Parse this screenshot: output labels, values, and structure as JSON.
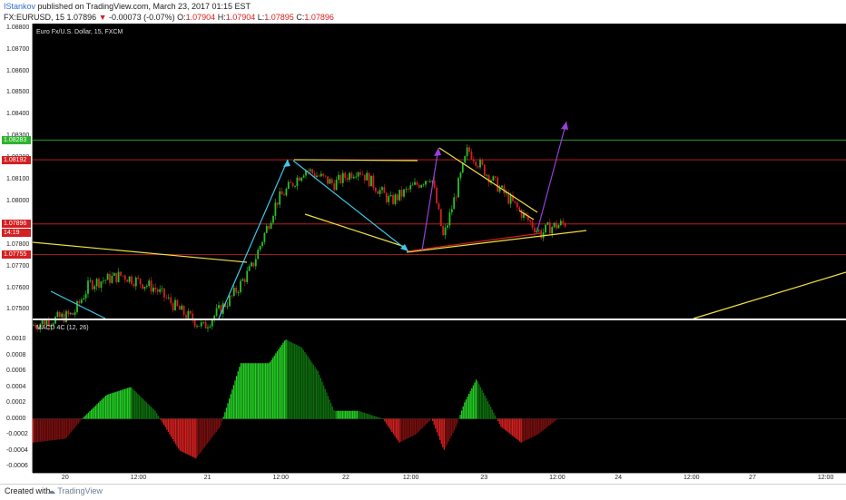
{
  "header": {
    "user": "IStankov",
    "published_text": "published on TradingView.com, March 23, 2017 01:15 EST",
    "symbol": "FX:EURUSD, 15",
    "last_price": "1.07896",
    "change_arrow": "▼",
    "change": "-0.00073 (-0.07%)",
    "open_label": "O:",
    "open": "1.07904",
    "high_label": "H:",
    "high": "1.07904",
    "low_label": "L:",
    "low": "1.07895",
    "close_label": "C:",
    "close": "1.07896"
  },
  "price_pane": {
    "title": "Euro Fx/U.S. Dollar, 15, FXCM",
    "price_ticks": [
      "1.08800",
      "1.08700",
      "1.08600",
      "1.08500",
      "1.08400",
      "1.08300",
      "1.08200",
      "1.08100",
      "1.08000",
      "1.07900",
      "1.07800",
      "1.07700",
      "1.07600",
      "1.07500"
    ],
    "tags": [
      {
        "text": "1.08283",
        "color": "#2db32d"
      },
      {
        "text": "1.08192",
        "color": "#d42020"
      },
      {
        "text": "1.07896",
        "color": "#d42020"
      },
      {
        "text": "14:19",
        "color": "#d42020"
      },
      {
        "text": "1.07755",
        "color": "#d42020"
      }
    ],
    "horizontal_levels": [
      {
        "price": 1.08283,
        "color": "#2db32d"
      },
      {
        "price": 1.08192,
        "color": "#d42020"
      },
      {
        "price": 1.07896,
        "color": "#d42020"
      },
      {
        "price": 1.07755,
        "color": "#d42020"
      }
    ]
  },
  "macd_pane": {
    "title": "MACD 4C (12, 26)",
    "ticks": [
      "0.0010",
      "0.0008",
      "0.0006",
      "0.0004",
      "0.0002",
      "0.0000",
      "-0.0002",
      "-0.0004",
      "-0.0006"
    ]
  },
  "time_axis": {
    "labels": [
      "20",
      "12:00",
      "21",
      "12:00",
      "22",
      "12:00",
      "23",
      "12:00",
      "24",
      "12:00",
      "27",
      "12:00"
    ]
  },
  "footer": {
    "created_with": "Created with",
    "brand": "TradingView"
  },
  "colors": {
    "background": "#000000",
    "up_candle": "#26c126",
    "down_candle": "#d42020",
    "trendline_yellow": "#f0e040",
    "arrow_cyan": "#3ec8e8",
    "arrow_purple": "#9b3fdc"
  },
  "chart_data": {
    "type": "candlestick",
    "title": "Euro Fx/U.S. Dollar, 15, FXCM",
    "ylim": [
      1.0746,
      1.0882
    ],
    "price_path": [
      {
        "t": 0.0,
        "p": 1.0743
      },
      {
        "t": 0.05,
        "p": 1.0748
      },
      {
        "t": 0.07,
        "p": 1.0762
      },
      {
        "t": 0.11,
        "p": 1.0766
      },
      {
        "t": 0.15,
        "p": 1.076
      },
      {
        "t": 0.18,
        "p": 1.075
      },
      {
        "t": 0.21,
        "p": 1.0742
      },
      {
        "t": 0.245,
        "p": 1.0756
      },
      {
        "t": 0.27,
        "p": 1.077
      },
      {
        "t": 0.3,
        "p": 1.08
      },
      {
        "t": 0.335,
        "p": 1.0815
      },
      {
        "t": 0.37,
        "p": 1.0808
      },
      {
        "t": 0.4,
        "p": 1.0815
      },
      {
        "t": 0.44,
        "p": 1.08
      },
      {
        "t": 0.49,
        "p": 1.0812
      },
      {
        "t": 0.505,
        "p": 1.0783
      },
      {
        "t": 0.525,
        "p": 1.081
      },
      {
        "t": 0.535,
        "p": 1.0824
      },
      {
        "t": 0.56,
        "p": 1.0812
      },
      {
        "t": 0.6,
        "p": 1.0795
      },
      {
        "t": 0.625,
        "p": 1.0785
      },
      {
        "t": 0.635,
        "p": 1.0788
      },
      {
        "t": 0.655,
        "p": 1.079
      }
    ],
    "macd_ylim": [
      -0.00068,
      0.00124
    ],
    "macd_path": [
      {
        "t": 0.0,
        "v": -0.0003
      },
      {
        "t": 0.04,
        "v": -0.00025
      },
      {
        "t": 0.06,
        "v": 0.0
      },
      {
        "t": 0.09,
        "v": 0.0003
      },
      {
        "t": 0.12,
        "v": 0.0004
      },
      {
        "t": 0.15,
        "v": 0.0001
      },
      {
        "t": 0.18,
        "v": -0.0004
      },
      {
        "t": 0.2,
        "v": -0.0005
      },
      {
        "t": 0.23,
        "v": -0.0001
      },
      {
        "t": 0.255,
        "v": 0.0007
      },
      {
        "t": 0.29,
        "v": 0.0007
      },
      {
        "t": 0.31,
        "v": 0.001
      },
      {
        "t": 0.33,
        "v": 0.0009
      },
      {
        "t": 0.35,
        "v": 0.0006
      },
      {
        "t": 0.37,
        "v": 0.0001
      },
      {
        "t": 0.4,
        "v": 0.0001
      },
      {
        "t": 0.43,
        "v": 0.0
      },
      {
        "t": 0.45,
        "v": -0.0003
      },
      {
        "t": 0.47,
        "v": -0.0002
      },
      {
        "t": 0.49,
        "v": 0.0
      },
      {
        "t": 0.505,
        "v": -0.0004
      },
      {
        "t": 0.52,
        "v": -0.0001
      },
      {
        "t": 0.53,
        "v": 0.0002
      },
      {
        "t": 0.545,
        "v": 0.0005
      },
      {
        "t": 0.56,
        "v": 0.0002
      },
      {
        "t": 0.575,
        "v": -0.0001
      },
      {
        "t": 0.6,
        "v": -0.0003
      },
      {
        "t": 0.62,
        "v": -0.0002
      },
      {
        "t": 0.645,
        "v": 0.0
      }
    ]
  }
}
